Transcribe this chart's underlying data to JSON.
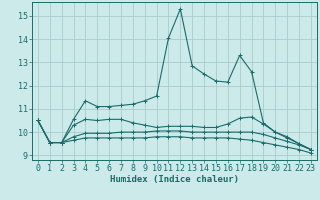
{
  "xlabel": "Humidex (Indice chaleur)",
  "xlim": [
    -0.5,
    23.5
  ],
  "ylim": [
    8.8,
    15.6
  ],
  "yticks": [
    9,
    10,
    11,
    12,
    13,
    14,
    15
  ],
  "xticks": [
    0,
    1,
    2,
    3,
    4,
    5,
    6,
    7,
    8,
    9,
    10,
    11,
    12,
    13,
    14,
    15,
    16,
    17,
    18,
    19,
    20,
    21,
    22,
    23
  ],
  "bg_color": "#cceaea",
  "grid_color": "#aacccc",
  "line_color": "#1a6b6b",
  "lines": [
    [
      10.5,
      9.55,
      9.55,
      10.55,
      11.35,
      11.1,
      11.1,
      11.15,
      11.2,
      11.35,
      11.55,
      14.05,
      15.3,
      12.85,
      12.5,
      12.2,
      12.15,
      13.3,
      12.6,
      10.4,
      10.0,
      9.8,
      9.5,
      9.25
    ],
    [
      10.5,
      9.55,
      9.55,
      10.3,
      10.55,
      10.5,
      10.55,
      10.55,
      10.4,
      10.3,
      10.2,
      10.25,
      10.25,
      10.25,
      10.2,
      10.2,
      10.35,
      10.6,
      10.65,
      10.35,
      10.0,
      9.75,
      9.5,
      9.25
    ],
    [
      10.5,
      9.55,
      9.55,
      9.8,
      9.95,
      9.95,
      9.95,
      10.0,
      10.0,
      10.0,
      10.05,
      10.05,
      10.05,
      10.0,
      10.0,
      10.0,
      10.0,
      10.0,
      10.0,
      9.9,
      9.75,
      9.6,
      9.45,
      9.25
    ],
    [
      10.5,
      9.55,
      9.55,
      9.65,
      9.75,
      9.75,
      9.75,
      9.75,
      9.75,
      9.75,
      9.8,
      9.8,
      9.8,
      9.75,
      9.75,
      9.75,
      9.75,
      9.7,
      9.65,
      9.55,
      9.45,
      9.35,
      9.25,
      9.1
    ]
  ],
  "label_fontsize": 6.5,
  "tick_fontsize": 6.0
}
